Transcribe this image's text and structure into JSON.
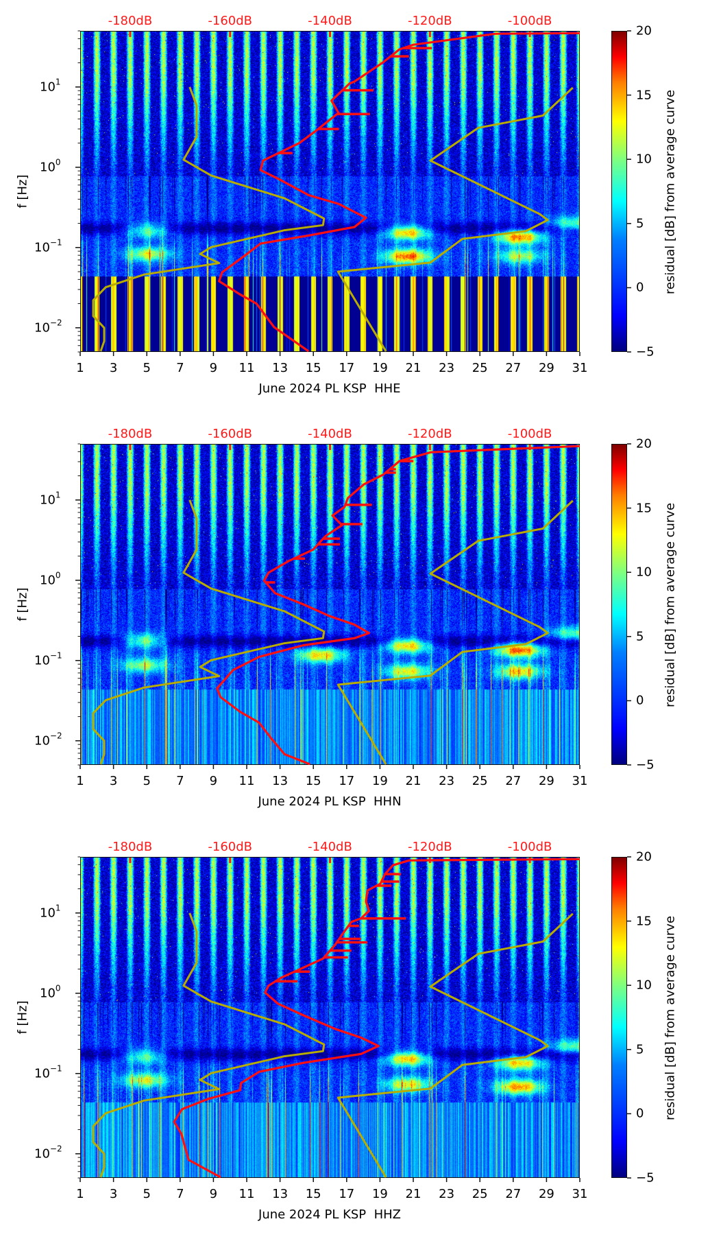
{
  "chart_data": [
    {
      "type": "heatmap",
      "title": "",
      "xlabel": "June 2024 PL KSP  HHE",
      "ylabel": "f [Hz]",
      "x_ticks": [
        "1",
        "3",
        "5",
        "7",
        "9",
        "11",
        "13",
        "15",
        "17",
        "19",
        "21",
        "23",
        "25",
        "27",
        "29",
        "31"
      ],
      "x_range_days": [
        1,
        31
      ],
      "y_scale": "log",
      "y_ticks": [
        {
          "base": "10",
          "exp": "1"
        },
        {
          "base": "10",
          "exp": "0"
        },
        {
          "base": "10",
          "exp": "−1"
        },
        {
          "base": "10",
          "exp": "−2"
        }
      ],
      "y_range_hz": [
        0.005,
        50
      ],
      "top_axis": {
        "labels": [
          "-180dB",
          "-160dB",
          "-140dB",
          "-120dB",
          "-100dB"
        ],
        "values_db": [
          -180,
          -160,
          -140,
          -120,
          -100
        ],
        "range_db": [
          -190,
          -90
        ]
      },
      "colorbar": {
        "label": "residual [dB] from average curve",
        "ticks": [
          "20",
          "15",
          "10",
          "5",
          "0",
          "−5"
        ],
        "range": [
          -5,
          20
        ],
        "colormap": "jet"
      },
      "low_freq_band_style": "stripes",
      "microseism_events": [
        {
          "day": 5,
          "f_hz": 0.17,
          "residual_db": 10
        },
        {
          "day": 5,
          "f_hz": 0.085,
          "residual_db": 10
        },
        {
          "day": 20.6,
          "f_hz": 0.16,
          "residual_db": 15
        },
        {
          "day": 20.6,
          "f_hz": 0.08,
          "residual_db": 15
        },
        {
          "day": 27.3,
          "f_hz": 0.14,
          "residual_db": 15
        },
        {
          "day": 27.3,
          "f_hz": 0.08,
          "residual_db": 9
        },
        {
          "day": 30.5,
          "f_hz": 0.2,
          "residual_db": 9
        }
      ],
      "series": [
        {
          "name": "psd-curve",
          "color": "#ff1010",
          "db": [
            -90.0,
            -106.9,
            -123.3,
            -126.1,
            -129.6,
            -135.1,
            -136.1,
            -139.7,
            -138.3,
            -142.4,
            -146.1,
            -153.4,
            -153.9,
            -150.2,
            -144.3,
            -138.3,
            -132.8,
            -135.1,
            -144.3,
            -153.9,
            -157.1,
            -161.6,
            -162.2,
            -158.0,
            -154.7,
            -151.2,
            -144.3
          ],
          "hz": [
            46.9,
            46.0,
            33.6,
            29.4,
            19.8,
            11.7,
            11.0,
            6.76,
            4.76,
            2.98,
            2.01,
            1.21,
            0.92,
            0.71,
            0.45,
            0.35,
            0.235,
            0.18,
            0.141,
            0.112,
            0.079,
            0.049,
            0.038,
            0.026,
            0.02,
            0.0102,
            0.0051
          ],
          "spikes": [
            [
              30.5,
              -119.6
            ],
            [
              24.1,
              -124.2
            ],
            [
              9.1,
              -131.3
            ],
            [
              4.6,
              -132.0
            ],
            [
              3.0,
              -138.2
            ],
            [
              1.5,
              -147.5
            ]
          ]
        },
        {
          "name": "low-noise-model",
          "color": "#b8ac00",
          "db": [
            -168.1,
            -166.7,
            -166.7,
            -169.3,
            -163.8,
            -149.1,
            -141.2,
            -141.4,
            -149.1,
            -163.8,
            -166.0,
            -162.2,
            -177.2,
            -184.9,
            -187.4,
            -187.4,
            -185.2,
            -185.2,
            -185.9
          ],
          "hz": [
            10.0,
            5.9,
            2.4,
            1.24,
            0.79,
            0.41,
            0.23,
            0.19,
            0.164,
            0.101,
            0.083,
            0.064,
            0.046,
            0.032,
            0.022,
            0.014,
            0.01,
            0.0068,
            0.0051
          ]
        },
        {
          "name": "high-noise-model",
          "color": "#b8ac00",
          "db": [
            -91.4,
            -97.4,
            -110.3,
            -119.9,
            -98.0,
            -96.4,
            -100.8,
            -113.5,
            -119.9,
            -138.4,
            -128.8
          ],
          "hz": [
            9.8,
            4.4,
            3.1,
            1.21,
            0.26,
            0.22,
            0.16,
            0.128,
            0.065,
            0.05,
            0.0051
          ]
        }
      ]
    },
    {
      "type": "heatmap",
      "title": "",
      "xlabel": "June 2024 PL KSP  HHN",
      "ylabel": "f [Hz]",
      "x_ticks": [
        "1",
        "3",
        "5",
        "7",
        "9",
        "11",
        "13",
        "15",
        "17",
        "19",
        "21",
        "23",
        "25",
        "27",
        "29",
        "31"
      ],
      "x_range_days": [
        1,
        31
      ],
      "y_scale": "log",
      "y_ticks": [
        {
          "base": "10",
          "exp": "1"
        },
        {
          "base": "10",
          "exp": "0"
        },
        {
          "base": "10",
          "exp": "−1"
        },
        {
          "base": "10",
          "exp": "−2"
        }
      ],
      "y_range_hz": [
        0.005,
        50
      ],
      "top_axis": {
        "labels": [
          "-180dB",
          "-160dB",
          "-140dB",
          "-120dB",
          "-100dB"
        ],
        "values_db": [
          -180,
          -160,
          -140,
          -120,
          -100
        ],
        "range_db": [
          -190,
          -90
        ]
      },
      "colorbar": {
        "label": "residual [dB] from average curve",
        "ticks": [
          "20",
          "15",
          "10",
          "5",
          "0",
          "−5"
        ],
        "range": [
          -5,
          20
        ],
        "colormap": "jet"
      },
      "low_freq_band_style": "smooth",
      "microseism_events": [
        {
          "day": 4.8,
          "f_hz": 0.18,
          "residual_db": 11
        },
        {
          "day": 4.8,
          "f_hz": 0.09,
          "residual_db": 9
        },
        {
          "day": 15.4,
          "f_hz": 0.12,
          "residual_db": 12
        },
        {
          "day": 20.6,
          "f_hz": 0.16,
          "residual_db": 15
        },
        {
          "day": 20.6,
          "f_hz": 0.075,
          "residual_db": 11
        },
        {
          "day": 27.3,
          "f_hz": 0.14,
          "residual_db": 16
        },
        {
          "day": 27.3,
          "f_hz": 0.075,
          "residual_db": 12
        },
        {
          "day": 30.5,
          "f_hz": 0.22,
          "residual_db": 8
        }
      ],
      "series": [
        {
          "name": "psd-curve",
          "color": "#ff1010",
          "db": [
            -90.4,
            -119.8,
            -126.1,
            -129.4,
            -133.2,
            -136.4,
            -137.1,
            -139.5,
            -137.6,
            -140.9,
            -143.4,
            -148.4,
            -152.3,
            -153.2,
            -151.0,
            -145.3,
            -140.2,
            -135.1,
            -132.2,
            -135.1,
            -145.3,
            -154.2,
            -159.4,
            -162.6,
            -161.9,
            -158.0,
            -154.2,
            -151.7,
            -149.1,
            -144.0
          ],
          "hz": [
            46.9,
            39.3,
            30.5,
            20.6,
            15.7,
            10.6,
            8.2,
            6.4,
            4.85,
            3.55,
            2.4,
            1.72,
            1.24,
            0.99,
            0.69,
            0.5,
            0.36,
            0.28,
            0.22,
            0.19,
            0.155,
            0.111,
            0.076,
            0.045,
            0.035,
            0.023,
            0.0168,
            0.0106,
            0.0068,
            0.0051
          ],
          "spikes": [
            [
              30.5,
              -123.3
            ],
            [
              24.1,
              -126.8
            ],
            [
              21.9,
              -126.8
            ],
            [
              8.7,
              -131.6
            ],
            [
              5.0,
              -133.5
            ],
            [
              3.3,
              -138.0
            ],
            [
              2.8,
              -138.0
            ],
            [
              1.86,
              -145.0
            ],
            [
              0.94,
              -151.0
            ]
          ]
        },
        {
          "name": "low-noise-model",
          "color": "#b8ac00",
          "db": [
            -168.1,
            -166.7,
            -166.7,
            -169.3,
            -163.8,
            -149.1,
            -141.2,
            -141.4,
            -149.1,
            -163.8,
            -166.0,
            -162.2,
            -177.2,
            -184.9,
            -187.4,
            -187.4,
            -185.2,
            -185.2,
            -185.9
          ],
          "hz": [
            10.0,
            5.9,
            2.4,
            1.24,
            0.79,
            0.41,
            0.23,
            0.19,
            0.164,
            0.101,
            0.083,
            0.064,
            0.046,
            0.032,
            0.022,
            0.014,
            0.01,
            0.0068,
            0.0051
          ]
        },
        {
          "name": "high-noise-model",
          "color": "#b8ac00",
          "db": [
            -91.4,
            -97.4,
            -110.3,
            -119.9,
            -98.0,
            -96.4,
            -100.8,
            -113.5,
            -119.9,
            -138.4,
            -128.8
          ],
          "hz": [
            9.8,
            4.4,
            3.1,
            1.21,
            0.26,
            0.22,
            0.16,
            0.128,
            0.065,
            0.05,
            0.0051
          ]
        }
      ]
    },
    {
      "type": "heatmap",
      "title": "",
      "xlabel": "June 2024 PL KSP  HHZ",
      "ylabel": "f [Hz]",
      "x_ticks": [
        "1",
        "3",
        "5",
        "7",
        "9",
        "11",
        "13",
        "15",
        "17",
        "19",
        "21",
        "23",
        "25",
        "27",
        "29",
        "31"
      ],
      "x_range_days": [
        1,
        31
      ],
      "y_scale": "log",
      "y_ticks": [
        {
          "base": "10",
          "exp": "1"
        },
        {
          "base": "10",
          "exp": "0"
        },
        {
          "base": "10",
          "exp": "−1"
        },
        {
          "base": "10",
          "exp": "−2"
        }
      ],
      "y_range_hz": [
        0.005,
        50
      ],
      "top_axis": {
        "labels": [
          "-180dB",
          "-160dB",
          "-140dB",
          "-120dB",
          "-100dB"
        ],
        "values_db": [
          -180,
          -160,
          -140,
          -120,
          -100
        ],
        "range_db": [
          -190,
          -90
        ]
      },
      "colorbar": {
        "label": "residual [dB] from average curve",
        "ticks": [
          "20",
          "15",
          "10",
          "5",
          "0",
          "−5"
        ],
        "range": [
          -5,
          20
        ],
        "colormap": "jet"
      },
      "low_freq_band_style": "smooth",
      "microseism_events": [
        {
          "day": 4.8,
          "f_hz": 0.17,
          "residual_db": 10
        },
        {
          "day": 4.8,
          "f_hz": 0.085,
          "residual_db": 10
        },
        {
          "day": 20.6,
          "f_hz": 0.16,
          "residual_db": 15
        },
        {
          "day": 20.6,
          "f_hz": 0.075,
          "residual_db": 11
        },
        {
          "day": 27.3,
          "f_hz": 0.14,
          "residual_db": 13
        },
        {
          "day": 27.3,
          "f_hz": 0.07,
          "residual_db": 14
        },
        {
          "day": 30.5,
          "f_hz": 0.22,
          "residual_db": 8
        }
      ],
      "series": [
        {
          "name": "psd-curve",
          "color": "#ff1010",
          "db": [
            -90.4,
            -124.2,
            -127.4,
            -129.0,
            -129.9,
            -132.5,
            -132.8,
            -132.2,
            -133.8,
            -135.7,
            -137.1,
            -139.0,
            -141.4,
            -145.3,
            -149.8,
            -152.3,
            -153.0,
            -150.4,
            -145.3,
            -139.0,
            -133.8,
            -130.3,
            -133.8,
            -145.3,
            -154.2,
            -157.8,
            -158.0,
            -164.5,
            -169.6,
            -171.2,
            -169.8,
            -168.3,
            -161.9
          ],
          "hz": [
            46.9,
            45.1,
            39.3,
            30.5,
            23.2,
            19.1,
            13.9,
            10.6,
            8.55,
            7.75,
            5.9,
            4.0,
            2.7,
            2.09,
            1.56,
            1.24,
            1.02,
            0.74,
            0.53,
            0.36,
            0.28,
            0.22,
            0.175,
            0.136,
            0.105,
            0.076,
            0.062,
            0.048,
            0.036,
            0.025,
            0.018,
            0.0084,
            0.0051
          ],
          "spikes": [
            [
              30.5,
              -125.8
            ],
            [
              24.6,
              -126.1
            ],
            [
              21.9,
              -127.7
            ],
            [
              8.55,
              -124.8
            ],
            [
              6.9,
              -134.2
            ],
            [
              4.76,
              -133.8
            ],
            [
              4.3,
              -132.5
            ],
            [
              3.4,
              -135.7
            ],
            [
              2.8,
              -136.4
            ],
            [
              1.86,
              -144.0
            ],
            [
              1.41,
              -146.5
            ]
          ]
        },
        {
          "name": "low-noise-model",
          "color": "#b8ac00",
          "db": [
            -168.1,
            -166.7,
            -166.7,
            -169.3,
            -163.8,
            -149.1,
            -141.2,
            -141.4,
            -149.1,
            -163.8,
            -166.0,
            -162.2,
            -177.2,
            -184.9,
            -187.4,
            -187.4,
            -185.2,
            -185.2,
            -185.9
          ],
          "hz": [
            10.0,
            5.9,
            2.4,
            1.24,
            0.79,
            0.41,
            0.23,
            0.19,
            0.164,
            0.101,
            0.083,
            0.064,
            0.046,
            0.032,
            0.022,
            0.014,
            0.01,
            0.0068,
            0.0051
          ]
        },
        {
          "name": "high-noise-model",
          "color": "#b8ac00",
          "db": [
            -91.4,
            -97.4,
            -110.3,
            -119.9,
            -98.0,
            -96.4,
            -100.8,
            -113.5,
            -119.9,
            -138.4,
            -128.8
          ],
          "hz": [
            9.8,
            4.4,
            3.1,
            1.21,
            0.26,
            0.22,
            0.16,
            0.128,
            0.065,
            0.05,
            0.0051
          ]
        }
      ]
    }
  ]
}
